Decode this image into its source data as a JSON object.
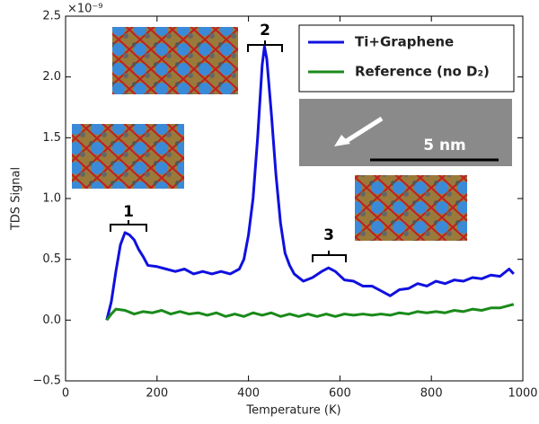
{
  "chart_data": {
    "type": "line",
    "x_label": "Temperature (K)",
    "y_label": "TDS Signal",
    "offset_text": "×10⁻⁹",
    "xlim": [
      0,
      1000
    ],
    "xticks": [
      0,
      200,
      400,
      600,
      800,
      1000
    ],
    "ylim": [
      -0.5,
      2.5
    ],
    "yticks": [
      {
        "value": -0.5,
        "label": "−0.5"
      },
      {
        "value": 0,
        "label": "0.0"
      },
      0.5,
      {
        "value": 1,
        "label": "1.0"
      },
      1.5,
      {
        "value": 2,
        "label": "2.0"
      },
      2.5
    ],
    "grid": false,
    "legend": "upper right",
    "annotations": [
      "1",
      "2",
      "3",
      "5 nm"
    ],
    "series": [
      {
        "name": "Ti+Graphene",
        "color": "#1010e0",
        "x": [
          90,
          100,
          110,
          120,
          130,
          140,
          150,
          160,
          170,
          180,
          200,
          220,
          240,
          260,
          280,
          300,
          320,
          340,
          360,
          380,
          390,
          400,
          410,
          420,
          430,
          435,
          440,
          450,
          460,
          470,
          480,
          490,
          500,
          520,
          540,
          560,
          575,
          590,
          610,
          630,
          650,
          670,
          690,
          710,
          730,
          750,
          770,
          790,
          810,
          830,
          850,
          870,
          890,
          910,
          930,
          950,
          970,
          980
        ],
        "values": [
          0.0,
          0.15,
          0.4,
          0.62,
          0.72,
          0.7,
          0.66,
          0.58,
          0.52,
          0.45,
          0.44,
          0.42,
          0.4,
          0.42,
          0.38,
          0.4,
          0.38,
          0.4,
          0.38,
          0.42,
          0.5,
          0.7,
          1.0,
          1.5,
          2.1,
          2.25,
          2.15,
          1.7,
          1.2,
          0.8,
          0.55,
          0.45,
          0.38,
          0.32,
          0.35,
          0.4,
          0.43,
          0.4,
          0.33,
          0.32,
          0.28,
          0.28,
          0.24,
          0.2,
          0.25,
          0.26,
          0.3,
          0.28,
          0.32,
          0.3,
          0.33,
          0.32,
          0.35,
          0.34,
          0.37,
          0.36,
          0.42,
          0.38
        ]
      },
      {
        "name": "Reference (no D₂)",
        "color": "#1a8a1a",
        "x": [
          90,
          100,
          110,
          130,
          150,
          170,
          190,
          210,
          230,
          250,
          270,
          290,
          310,
          330,
          350,
          370,
          390,
          410,
          430,
          450,
          470,
          490,
          510,
          530,
          550,
          570,
          590,
          610,
          630,
          650,
          670,
          690,
          710,
          730,
          750,
          770,
          790,
          810,
          830,
          850,
          870,
          890,
          910,
          930,
          950,
          970,
          980
        ],
        "values": [
          0.0,
          0.05,
          0.09,
          0.08,
          0.05,
          0.07,
          0.06,
          0.08,
          0.05,
          0.07,
          0.05,
          0.06,
          0.04,
          0.06,
          0.03,
          0.05,
          0.03,
          0.06,
          0.04,
          0.06,
          0.03,
          0.05,
          0.03,
          0.05,
          0.03,
          0.05,
          0.03,
          0.05,
          0.04,
          0.05,
          0.04,
          0.05,
          0.04,
          0.06,
          0.05,
          0.07,
          0.06,
          0.07,
          0.06,
          0.08,
          0.07,
          0.09,
          0.08,
          0.1,
          0.1,
          0.12,
          0.13
        ]
      }
    ]
  }
}
